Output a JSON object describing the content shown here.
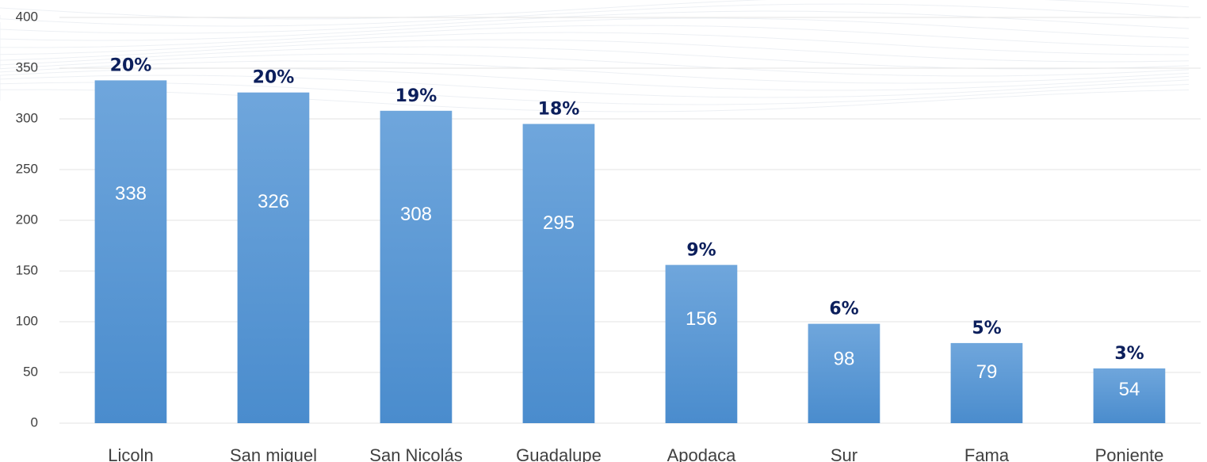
{
  "chart_data": {
    "type": "bar",
    "title": "",
    "xlabel": "",
    "ylabel": "",
    "ylim": [
      0,
      400
    ],
    "yticks": [
      0,
      50,
      100,
      150,
      200,
      250,
      300,
      350,
      400
    ],
    "grid": true,
    "categories": [
      "Licoln",
      "San miguel",
      "San Nicolás",
      "Guadalupe",
      "Apodaca",
      "Sur",
      "Fama",
      "Poniente"
    ],
    "values": [
      338,
      326,
      308,
      295,
      156,
      98,
      79,
      54
    ],
    "percent_labels": [
      "20%",
      "20%",
      "19%",
      "18%",
      "9%",
      "6%",
      "5%",
      "3%"
    ],
    "colors": {
      "bar_top": "#6fa6dc",
      "bar_bottom": "#4a8ccd",
      "value_text": "#ffffff",
      "percent_text": "#0c1f5c",
      "axis_text": "#404040",
      "gridline": "#e3e3e3"
    }
  }
}
